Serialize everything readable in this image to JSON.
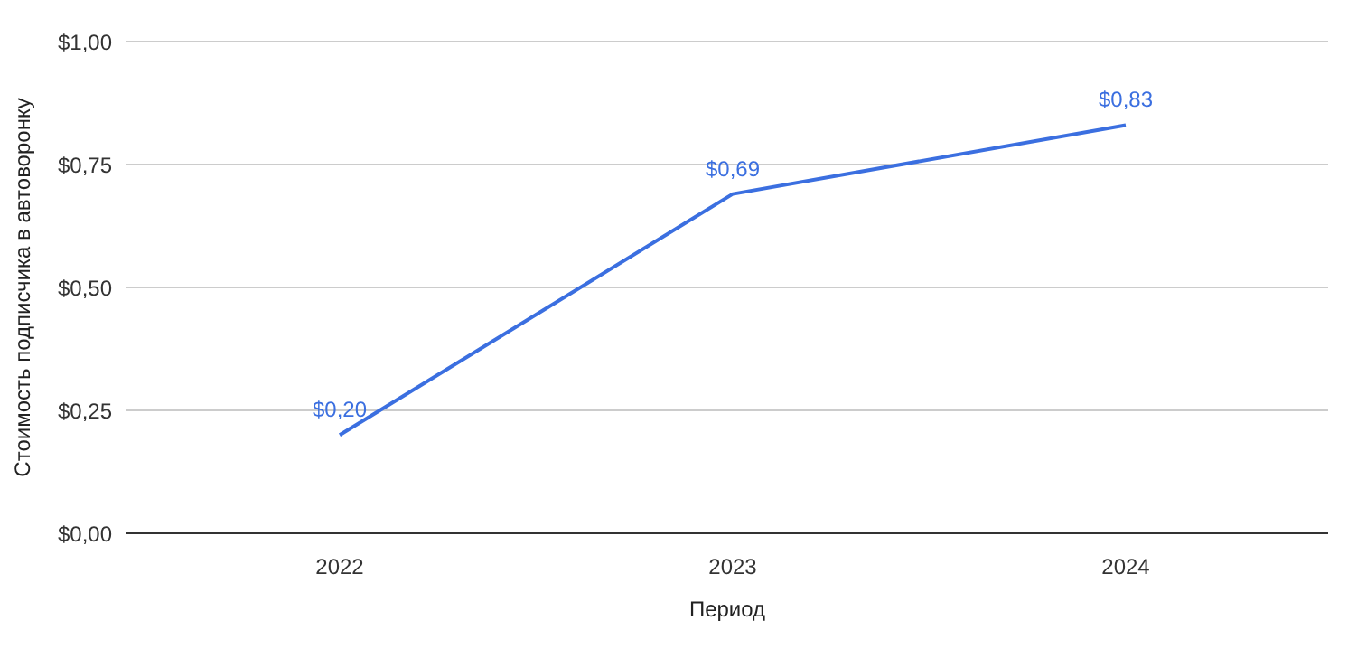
{
  "chart_data": {
    "type": "line",
    "xlabel": "Период",
    "ylabel": "Стоимость подписчика в автоворонку",
    "categories": [
      "2022",
      "2023",
      "2024"
    ],
    "series": [
      {
        "color": "#3b6fe0",
        "values": [
          0.2,
          0.69,
          0.83
        ],
        "value_labels": [
          "$0,20",
          "$0,69",
          "$0,83"
        ]
      }
    ],
    "ylim": [
      0,
      1
    ],
    "yticks": [
      {
        "value": 0,
        "label": "$0,00"
      },
      {
        "value": 0.25,
        "label": "$0,25"
      },
      {
        "value": 0.5,
        "label": "$0,50"
      },
      {
        "value": 0.75,
        "label": "$0,75"
      },
      {
        "value": 1,
        "label": "$1,00"
      }
    ],
    "grid": "y",
    "legend": false,
    "marker": "none",
    "line_style": "solid"
  }
}
